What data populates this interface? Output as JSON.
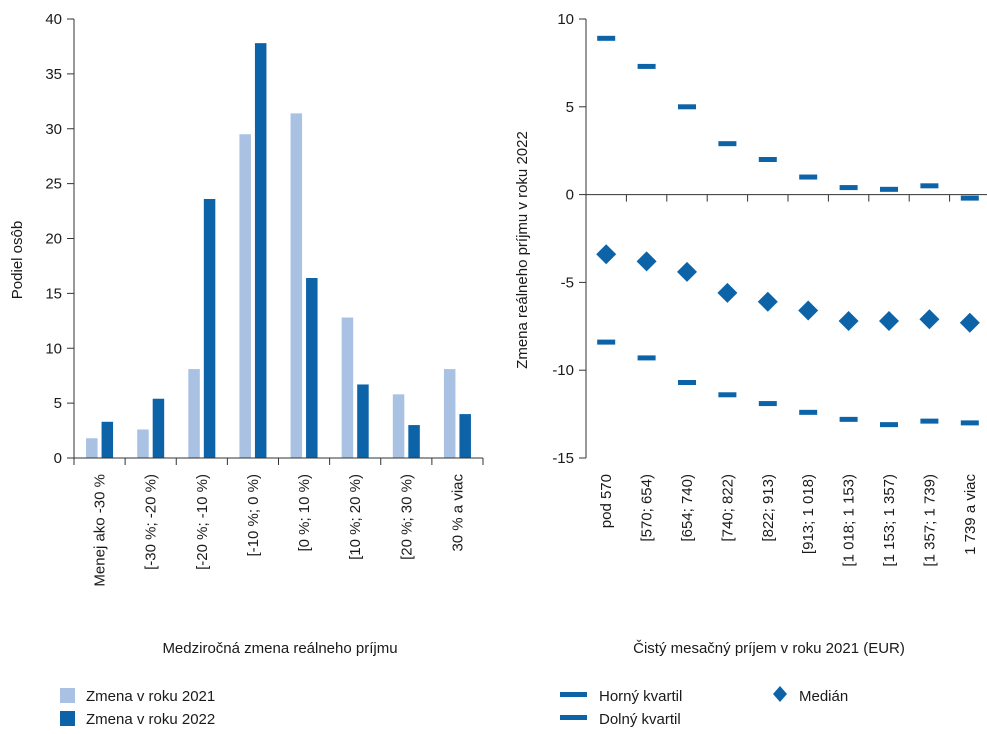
{
  "colors": {
    "light": "#a9c1e3",
    "dark": "#0d63a8",
    "axis": "#333333"
  },
  "chart_data": [
    {
      "type": "bar",
      "xlabel": "Medziročná zmena reálneho príjmu",
      "ylabel": "Podiel osôb",
      "ylim": [
        0,
        40
      ],
      "yticks": [
        0,
        5,
        10,
        15,
        20,
        25,
        30,
        35,
        40
      ],
      "categories": [
        "Menej ako -30 %",
        "[-30 %; -20 %)",
        "[-20 %; -10 %)",
        "[-10 %; 0 %)",
        "[0 %; 10 %)",
        "[10 %; 20 %)",
        "[20 %; 30 %)",
        "30 % a viac"
      ],
      "series": [
        {
          "name": "Zmena v roku 2021",
          "color": "#a9c1e3",
          "values": [
            1.8,
            2.6,
            8.1,
            29.5,
            31.4,
            12.8,
            5.8,
            8.1
          ]
        },
        {
          "name": "Zmena v roku 2022",
          "color": "#0d63a8",
          "values": [
            3.3,
            5.4,
            23.6,
            37.8,
            16.4,
            6.7,
            3.0,
            4.0
          ]
        }
      ],
      "grid": false,
      "legend": "bottom-left"
    },
    {
      "type": "scatter",
      "xlabel": "Čistý mesačný príjem v roku 2021 (EUR)",
      "ylabel": "Zmena reálneho príjmu v roku 2022",
      "ylim": [
        -15,
        10
      ],
      "yticks": [
        10,
        5,
        0,
        -5,
        -10,
        -15
      ],
      "ytick_labels": [
        "10",
        "5",
        "0",
        "-5",
        "-10",
        "-15"
      ],
      "categories": [
        "pod 570",
        "[570; 654)",
        "[654; 740)",
        "[740; 822)",
        "[822; 913)",
        "[913; 1 018)",
        "[1 018; 1 153)",
        "[1 153; 1 357)",
        "[1 357; 1 739)",
        "1 739 a viac"
      ],
      "series": [
        {
          "name": "Horný kvartil",
          "marker": "dash",
          "color": "#0d63a8",
          "values": [
            8.9,
            7.3,
            5.0,
            2.9,
            2.0,
            1.0,
            0.4,
            0.3,
            0.5,
            -0.2
          ]
        },
        {
          "name": "Dolný kvartil",
          "marker": "dash",
          "color": "#0d63a8",
          "values": [
            -8.4,
            -9.3,
            -10.7,
            -11.4,
            -11.9,
            -12.4,
            -12.8,
            -13.1,
            -12.9,
            -13.0
          ]
        },
        {
          "name": "Medián",
          "marker": "diamond",
          "color": "#0d63a8",
          "values": [
            -3.4,
            -3.8,
            -4.4,
            -5.6,
            -6.1,
            -6.6,
            -7.2,
            -7.2,
            -7.1,
            -7.3
          ]
        }
      ],
      "grid": false,
      "legend": "bottom"
    }
  ]
}
